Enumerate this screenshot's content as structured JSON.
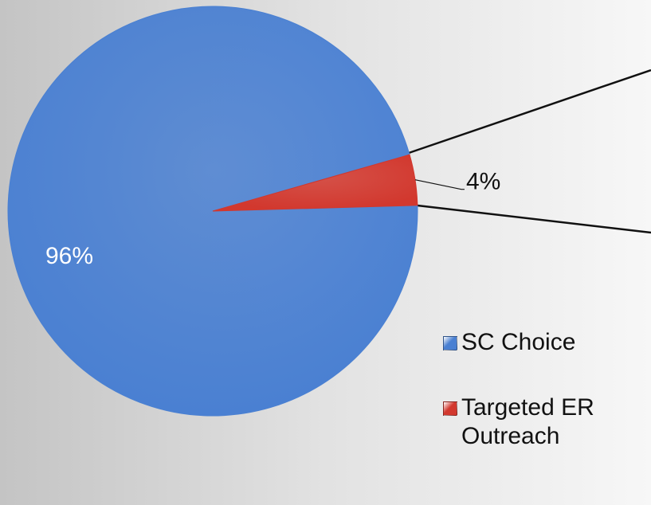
{
  "chart_data": {
    "type": "pie",
    "categories": [
      "SC Choice",
      "Targeted ER Outreach"
    ],
    "values": [
      96,
      4
    ],
    "value_labels": [
      "96%",
      "4%"
    ],
    "colors": [
      "#4a80d2",
      "#d2382e"
    ],
    "legend": "right"
  }
}
